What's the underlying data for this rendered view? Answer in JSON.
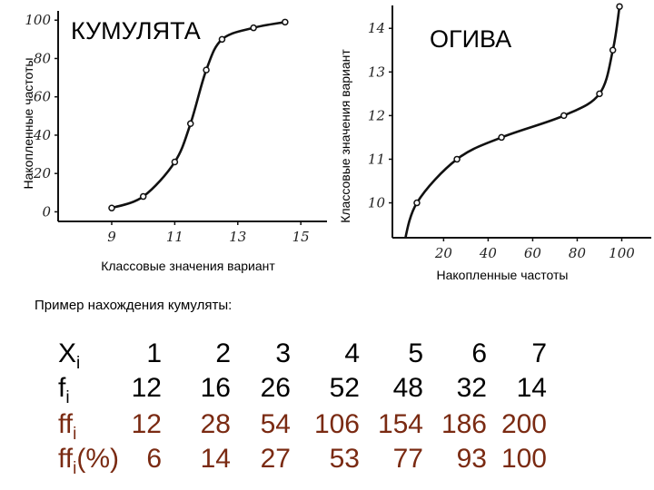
{
  "chart_data": [
    {
      "type": "line",
      "title": "КУМУЛЯТА",
      "xlabel": "Классовые значения вариант",
      "ylabel": "Накопленные частоты",
      "xticks": [
        "9",
        "11",
        "13",
        "15"
      ],
      "yticks": [
        "0",
        "20",
        "40",
        "60",
        "80",
        "100"
      ],
      "xlim": [
        7.3,
        15.6
      ],
      "ylim": [
        -5,
        102
      ],
      "series": [
        {
          "x": [
            9,
            10,
            11,
            11.5,
            12,
            12.5,
            13.5,
            14.5
          ],
          "y": [
            2,
            8,
            26,
            46,
            74,
            90,
            96,
            99
          ]
        }
      ]
    },
    {
      "type": "line",
      "title": "ОГИВА",
      "xlabel": "Накопленные частоты",
      "ylabel": "Классовые значения вариант",
      "xticks": [
        "20",
        "40",
        "60",
        "80",
        "100"
      ],
      "yticks": [
        "10",
        "11",
        "12",
        "13",
        "14"
      ],
      "xlim": [
        -3,
        110
      ],
      "ylim": [
        9.2,
        14.4
      ],
      "series": [
        {
          "x": [
            2,
            8,
            26,
            46,
            74,
            90,
            96,
            99
          ],
          "y": [
            9,
            10,
            11,
            11.5,
            12,
            12.5,
            13.5,
            14.5
          ]
        }
      ]
    }
  ],
  "example": {
    "title": "Пример нахождения кумуляты:",
    "rows": [
      {
        "label": "X",
        "sub": "i",
        "suffix": "",
        "color": "black",
        "values": [
          "1",
          "2",
          "3",
          "4",
          "5",
          "6",
          "7"
        ]
      },
      {
        "label": "f",
        "sub": "i",
        "suffix": "",
        "color": "black",
        "values": [
          "12",
          "16",
          "26",
          "52",
          "48",
          "32",
          "14"
        ]
      },
      {
        "label": "ff",
        "sub": "i",
        "suffix": "",
        "color": "brown",
        "values": [
          "12",
          "28",
          "54",
          "106",
          "154",
          "186",
          "200"
        ]
      },
      {
        "label": "ff",
        "sub": "i",
        "suffix": "(%)",
        "color": "brown",
        "values": [
          "6",
          "14",
          "27",
          "53",
          "77",
          "93",
          "100"
        ]
      }
    ]
  }
}
